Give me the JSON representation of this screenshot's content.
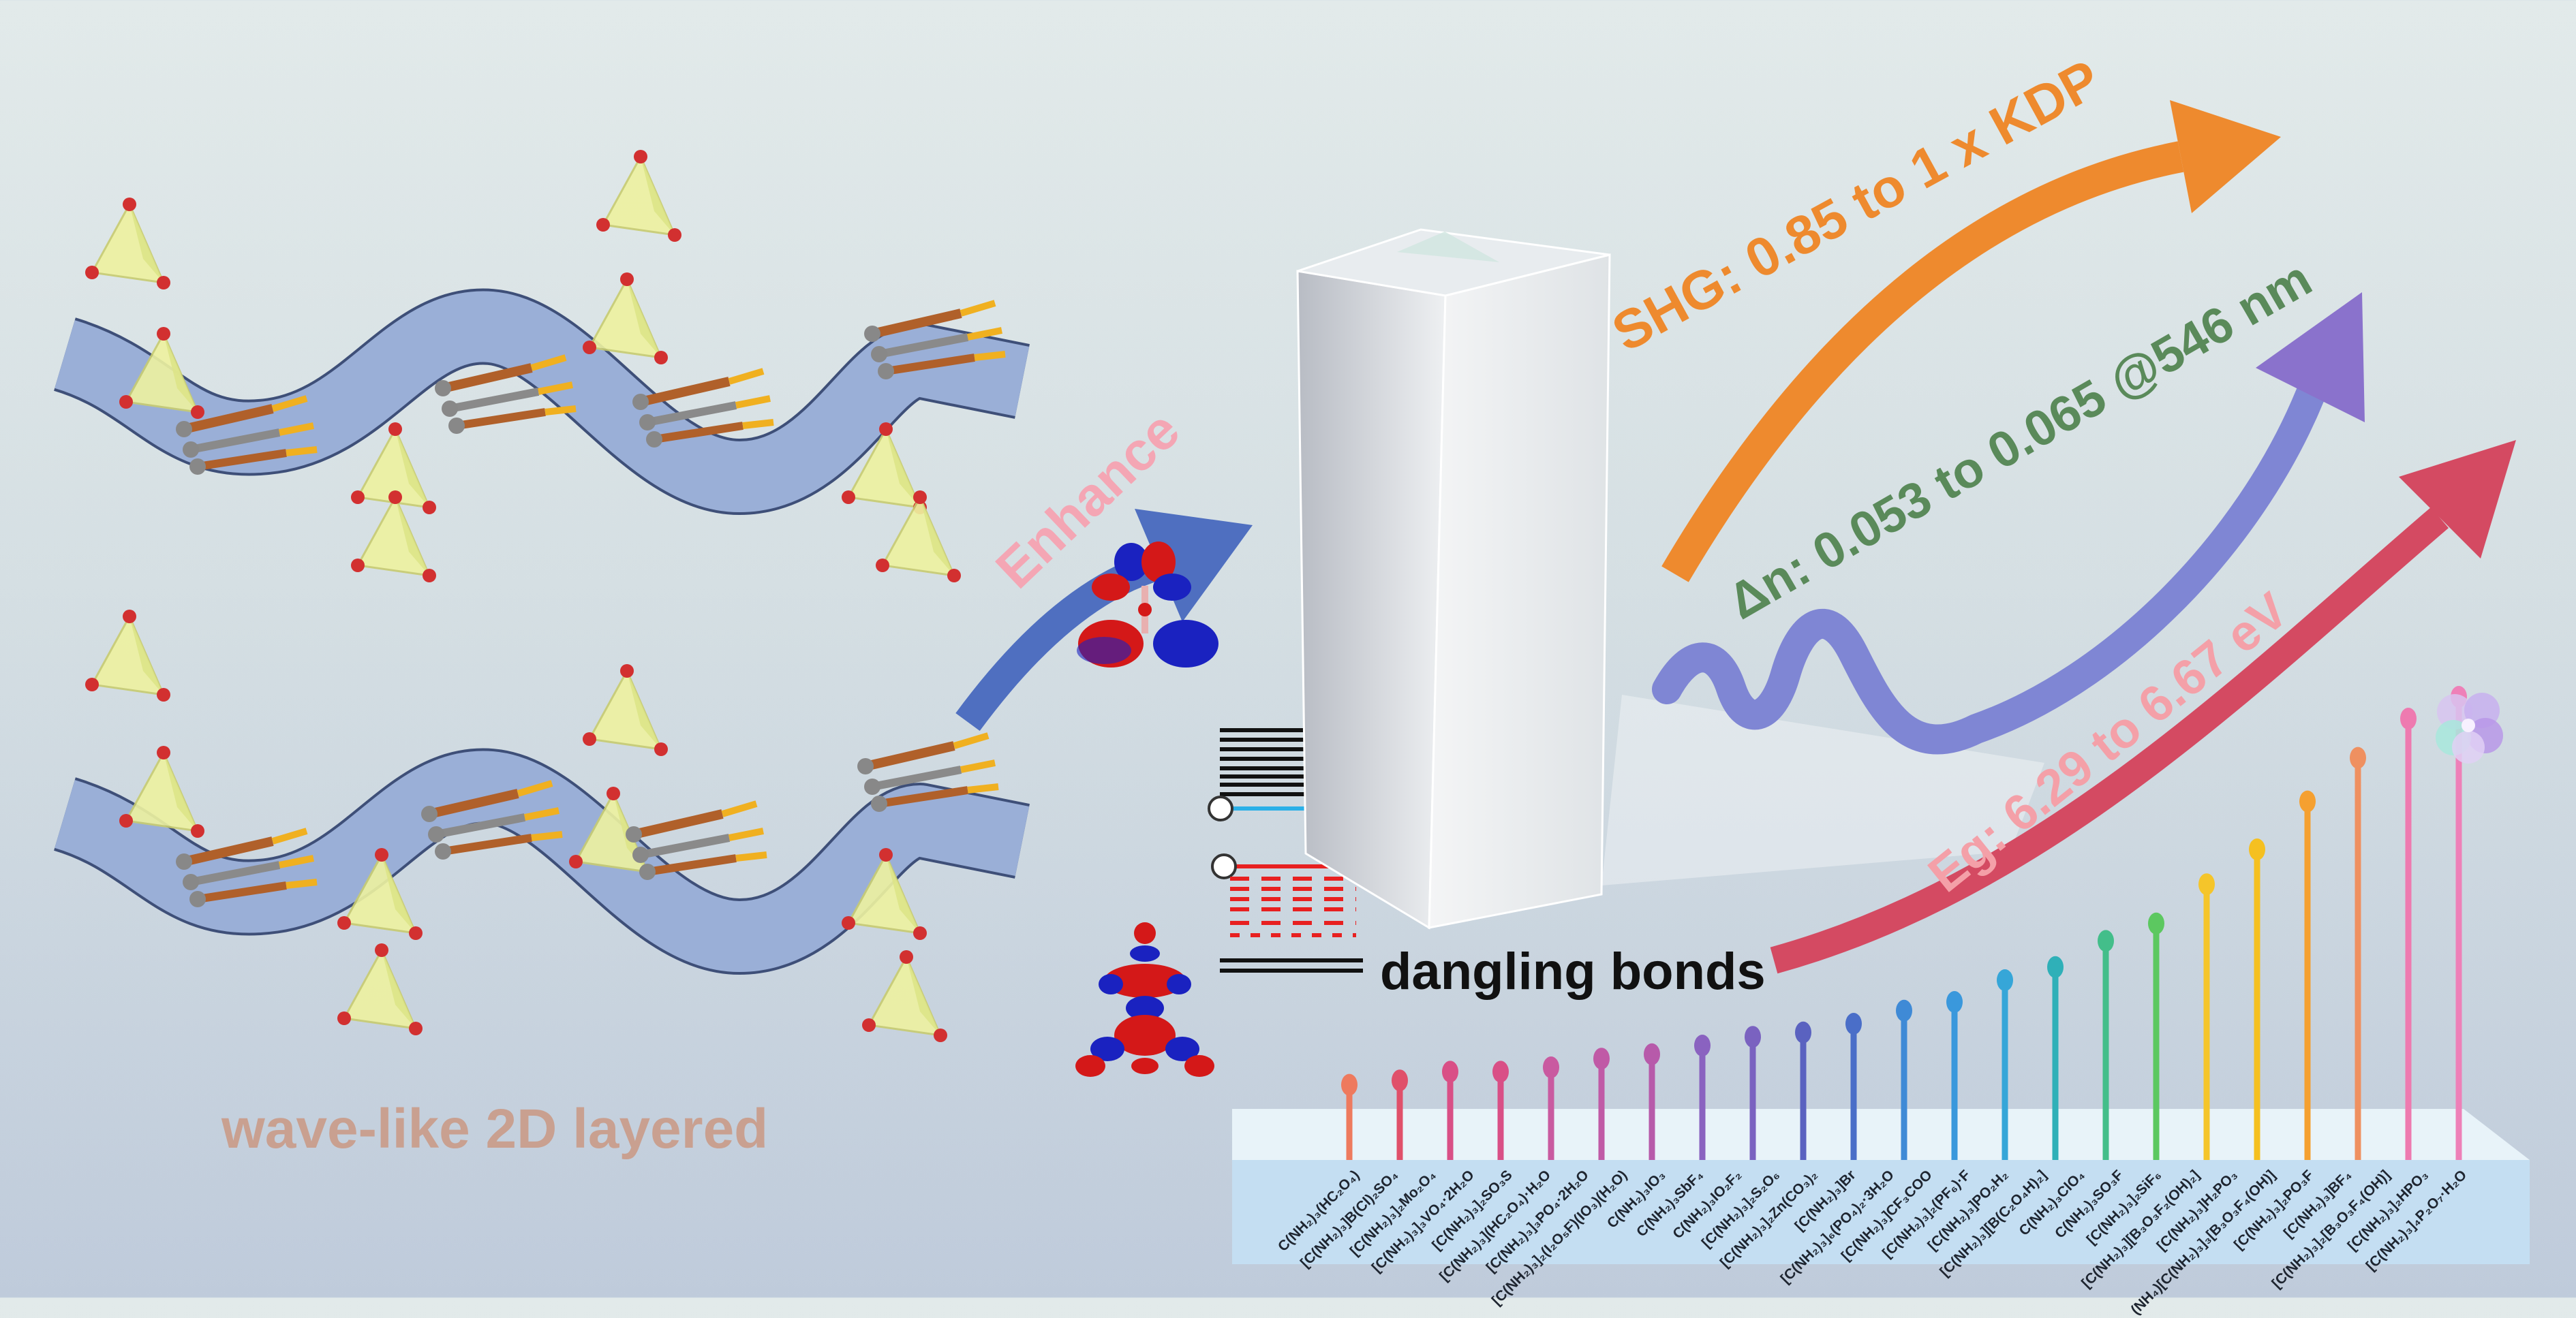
{
  "left_caption": "wave-like 2D layered",
  "enhance_label": "Enhance",
  "dangling_label": "dangling bonds",
  "properties": {
    "shg": {
      "text": "SHG: 0.85 to 1 x KDP",
      "color": "#ee8a2e"
    },
    "birefringence": {
      "text": "Δn: 0.053 to 0.065 @546 nm",
      "color": "#5a8a5a"
    },
    "bandgap": {
      "text": "Eg: 6.29 to 6.67 eV",
      "color": "#f4a0a8"
    }
  },
  "colors": {
    "enhance_arrow": "#4f6fc0",
    "shg_arrow": "#ee8a2e",
    "wave_arrow": "#7f7fd0",
    "eg_arrow": "#d44a62",
    "caption": "#c9a090",
    "enhance_text": "#f4a6b4"
  },
  "lollipops": {
    "levels": [
      0.11,
      0.12,
      0.14,
      0.14,
      0.15,
      0.17,
      0.18,
      0.2,
      0.22,
      0.23,
      0.25,
      0.28,
      0.3,
      0.35,
      0.38,
      0.44,
      0.48,
      0.57,
      0.65,
      0.76,
      0.86,
      0.95,
      1.0
    ],
    "colors": [
      "#ee7a5e",
      "#e0506a",
      "#d94f86",
      "#d94f86",
      "#c95aa0",
      "#c05aa6",
      "#b75aaa",
      "#8a62c0",
      "#7a62c0",
      "#5a62c0",
      "#4a6ec8",
      "#3f8ad6",
      "#3a98dc",
      "#36a6d8",
      "#2fb0b8",
      "#43be8a",
      "#5cc860",
      "#f5c52a",
      "#f5c020",
      "#f5a030",
      "#ef9060",
      "#ee7ab0",
      "#ee80b8"
    ]
  },
  "compounds": [
    "C(NH₂)₃(HC₂O₄)",
    "[C(NH₂)₃]B(Cl)₂SO₄",
    "[C(NH₂)₃]₂Mo₂O₄",
    "[C(NH₂)₃]₃VO₄·2H₂O",
    "[C(NH₂)₃]₂SO₃S",
    "[C(NH₂)₃](HC₂O₄)·H₂O",
    "[C(NH₂)₃]₃PO₄·2H₂O",
    "[C(NH₂)₃]₂(I₂O₅F)(IO₃)(H₂O)",
    "C(NH₂)₃IO₃",
    "C(NH₂)₃SbF₄",
    "C(NH₂)₃IO₂F₂",
    "[C(NH₂)₃]₂S₂O₆",
    "[C(NH₂)₃]₂Zn(CO₃)₂",
    "[C(NH₂)₃]Br",
    "[C(NH₂)₃]₆(PO₄)₂·3H₂O",
    "[C(NH₂)₃]CF₃COO",
    "[C(NH₂)₃]₂(PF₆)·F",
    "[C(NH₂)₃]PO₂H₂",
    "[C(NH₂)₃][B(C₂O₄H)₂]",
    "C(NH₂)₃ClO₄",
    "C(NH₂)₃SO₃F",
    "[C(NH₂)₃]₂SiF₆",
    "[C(NH₂)₃][B₃O₃F₂(OH)₂]",
    "[C(NH₂)₃]H₂PO₃",
    "(NH₄)[C(NH₂)₃]₃[B₃O₃F₄(OH)]",
    "[C(NH₂)₃]₂PO₃F",
    "[C(NH₂)₃]BF₄",
    "[C(NH₂)₃]₂[B₃O₃F₄(OH)]",
    "[C(NH₂)₃]₂HPO₃",
    "[C(NH₂)₃]₄P₂O₇·H₂O"
  ]
}
